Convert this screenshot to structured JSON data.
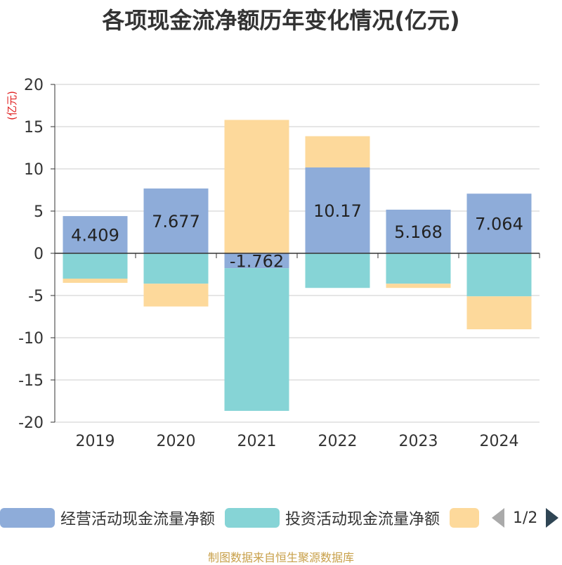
{
  "title": "各项现金流净额历年变化情况(亿元)",
  "y_unit": "(亿元)",
  "source": "制图数据来自恒生聚源数据库",
  "legend": {
    "items": [
      {
        "label": "经营活动现金流量净额",
        "color": "#8eacd9"
      },
      {
        "label": "投资活动现金流量净额",
        "color": "#86d4d6"
      },
      {
        "label": "",
        "color": "#fdd99b"
      }
    ],
    "page": "1/2"
  },
  "chart_data": {
    "type": "bar",
    "stacked": true,
    "categories": [
      "2019",
      "2020",
      "2021",
      "2022",
      "2023",
      "2024"
    ],
    "ylim": [
      -20,
      20
    ],
    "yticks": [
      20,
      15,
      10,
      5,
      0,
      -5,
      -10,
      -15,
      -20
    ],
    "grid": true,
    "legend_position": "bottom",
    "series": [
      {
        "name": "经营活动现金流量净额",
        "color": "#8eacd9",
        "values": [
          4.409,
          7.677,
          -1.762,
          10.17,
          5.168,
          7.064
        ],
        "labels": [
          "4.409",
          "7.677",
          "-1.762",
          "10.17",
          "5.168",
          "7.064"
        ]
      },
      {
        "color": "#86d4d6",
        "values": [
          -3.0,
          -3.6,
          -16.9,
          -4.1,
          -3.6,
          -5.1
        ]
      },
      {
        "color": "#fdd99b",
        "values": [
          -0.5,
          -2.7,
          15.8,
          3.7,
          -0.5,
          -3.9
        ]
      }
    ]
  }
}
